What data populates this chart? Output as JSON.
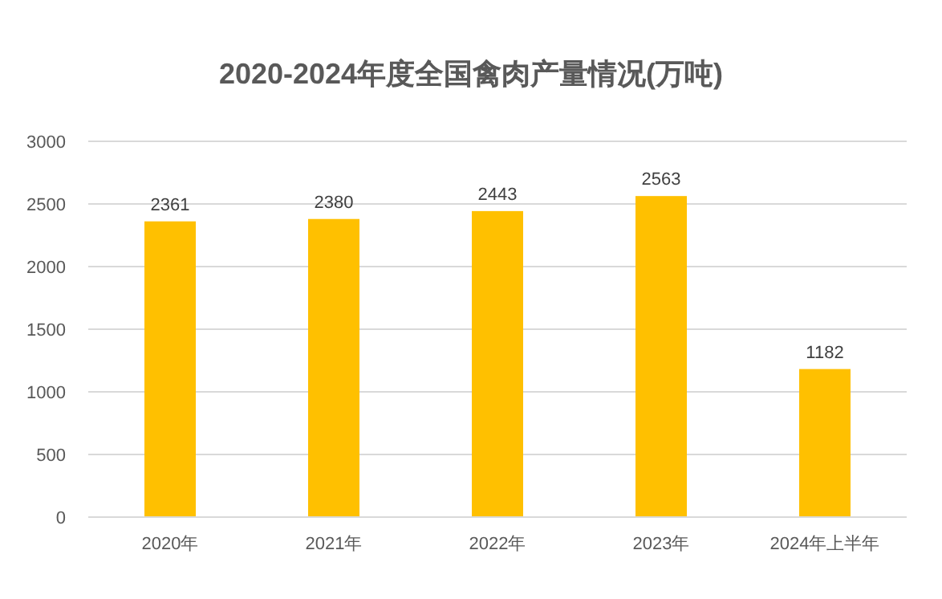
{
  "chart_data": {
    "type": "bar",
    "title": "2020-2024年度全国禽肉产量情况(万吨)",
    "categories": [
      "2020年",
      "2021年",
      "2022年",
      "2023年",
      "2024年上半年"
    ],
    "values": [
      2361,
      2380,
      2443,
      2563,
      1182
    ],
    "color": "#ffc000",
    "ylim": [
      0,
      3000
    ],
    "yticks": [
      0,
      500,
      1000,
      1500,
      2000,
      2500,
      3000
    ],
    "grid": "y",
    "data_labels": true
  }
}
